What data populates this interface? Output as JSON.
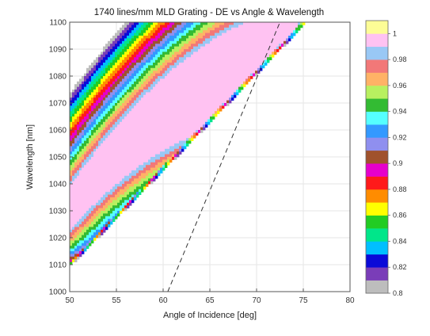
{
  "chart_data": {
    "type": "contour",
    "title": "1740 lines/mm MLD Grating - DE vs Angle & Wavelength",
    "xlabel": "Angle of Incidence [deg]",
    "ylabel": "Wavelength [nm]",
    "xlim": [
      50,
      80
    ],
    "ylim": [
      1000,
      1100
    ],
    "x_ticks": [
      50,
      55,
      60,
      65,
      70,
      75,
      80
    ],
    "y_ticks": [
      1000,
      1010,
      1020,
      1030,
      1040,
      1050,
      1060,
      1070,
      1080,
      1090,
      1100
    ],
    "grid": true,
    "dashed_line": {
      "x": [
        60.5,
        72.5
      ],
      "y": [
        1000,
        1100
      ]
    },
    "colorbar": {
      "range": [
        0.8,
        1
      ],
      "tick_labels": [
        "1",
        "0.98",
        "0.96",
        "0.94",
        "0.92",
        "0.9",
        "0.88",
        "0.86",
        "0.84",
        "0.82",
        "0.8"
      ],
      "levels": [
        {
          "from": 0.8,
          "to": 0.81,
          "color": "#bdbdbd"
        },
        {
          "from": 0.81,
          "to": 0.82,
          "color": "#7a3db8"
        },
        {
          "from": 0.82,
          "to": 0.83,
          "color": "#0a0ad8"
        },
        {
          "from": 0.83,
          "to": 0.84,
          "color": "#00bfff"
        },
        {
          "from": 0.84,
          "to": 0.85,
          "color": "#00e68a"
        },
        {
          "from": 0.85,
          "to": 0.86,
          "color": "#22cc22"
        },
        {
          "from": 0.86,
          "to": 0.87,
          "color": "#ffff00"
        },
        {
          "from": 0.87,
          "to": 0.88,
          "color": "#ff8c00"
        },
        {
          "from": 0.88,
          "to": 0.89,
          "color": "#ff1a1a"
        },
        {
          "from": 0.89,
          "to": 0.9,
          "color": "#e600cc"
        },
        {
          "from": 0.9,
          "to": 0.91,
          "color": "#a0522d"
        },
        {
          "from": 0.91,
          "to": 0.92,
          "color": "#8f8fef"
        },
        {
          "from": 0.92,
          "to": 0.93,
          "color": "#3399ff"
        },
        {
          "from": 0.93,
          "to": 0.94,
          "color": "#55ffff"
        },
        {
          "from": 0.94,
          "to": 0.95,
          "color": "#33bb33"
        },
        {
          "from": 0.95,
          "to": 0.96,
          "color": "#b8f060"
        },
        {
          "from": 0.96,
          "to": 0.97,
          "color": "#ffb266"
        },
        {
          "from": 0.97,
          "to": 0.98,
          "color": "#f27878"
        },
        {
          "from": 0.98,
          "to": 0.99,
          "color": "#99c8f5"
        },
        {
          "from": 0.99,
          "to": 1.0,
          "color": "#ffc2f2"
        },
        {
          "from": 1.0,
          "to": 1.01,
          "color": "#fdfd96"
        }
      ]
    }
  }
}
